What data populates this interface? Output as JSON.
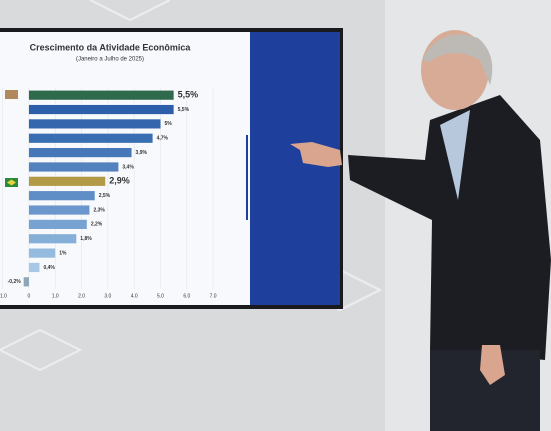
{
  "chart_data": {
    "type": "barh",
    "title": "Crescimento da Atividade Econômica",
    "subtitle": "(Janeiro a Julho de 2025)",
    "categories": [
      null,
      null,
      null,
      null,
      null,
      null,
      null,
      null,
      null,
      null,
      null,
      null,
      null,
      null
    ],
    "values": [
      5.5,
      5.5,
      5,
      4.7,
      3.9,
      3.4,
      2.9,
      2.5,
      2.3,
      2.2,
      1.8,
      1,
      0.4,
      -0.2
    ],
    "value_labels": [
      "5,5%",
      "5,5%",
      "5%",
      "4,7%",
      "3,9%",
      "3,4%",
      "2,9%",
      "2,5%",
      "2,3%",
      "2,2%",
      "1,8%",
      "1%",
      "0,4%",
      "-0,2%"
    ],
    "colors": [
      "#2f6a4d",
      "#2d5ea9",
      "#3366ad",
      "#3a6eb2",
      "#4677b8",
      "#5382bf",
      "#b39a47",
      "#5f8dc6",
      "#6b97cc",
      "#77a2d2",
      "#86afd8",
      "#95bbdf",
      "#a6c7e5",
      "#8ea5b8"
    ],
    "xlim": [
      -1.1,
      7.3
    ],
    "xticks": [
      {
        "value": -1,
        "label": "-1.0"
      },
      0,
      {
        "value": 1,
        "label": "1.0"
      },
      {
        "value": 2,
        "label": "2.0"
      },
      {
        "value": 3,
        "label": "3.0"
      },
      {
        "value": 4,
        "label": "4.0"
      },
      {
        "value": 5,
        "label": "5.0"
      },
      {
        "value": 6,
        "label": "6.0"
      },
      {
        "value": 7,
        "label": "7.0"
      }
    ],
    "grid": true
  }
}
